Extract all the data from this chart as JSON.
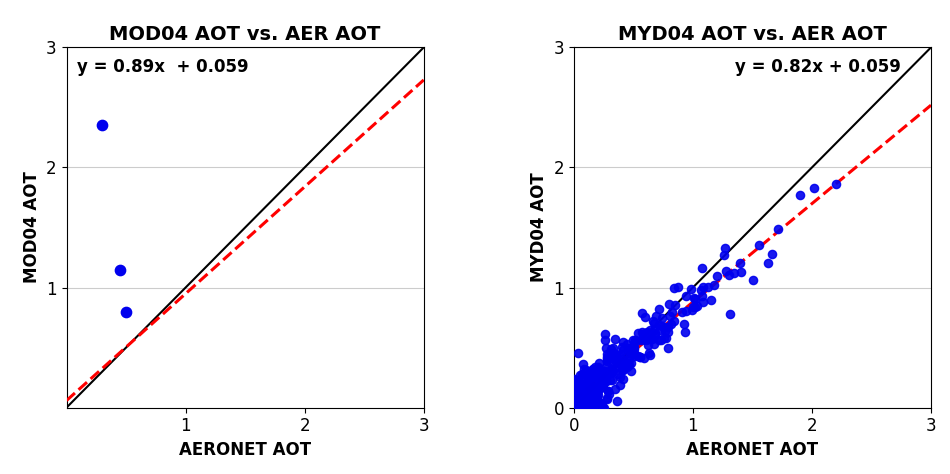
{
  "left_plot": {
    "title": "MOD04 AOT vs. AER AOT",
    "xlabel": "AERONET AOT",
    "ylabel": "MOD04 AOT",
    "equation": "y = 0.89x  + 0.059",
    "xlim": [
      0,
      3
    ],
    "ylim": [
      0,
      3
    ],
    "xticks": [
      1,
      2,
      3
    ],
    "yticks": [
      1,
      2,
      3
    ],
    "scatter_x": [
      0.3,
      0.45,
      0.5
    ],
    "scatter_y": [
      2.35,
      1.15,
      0.8
    ],
    "reg_slope": 0.89,
    "reg_intercept": 0.059,
    "scatter_color": "#0000ee",
    "scatter_size": 55,
    "line_color": "#000000",
    "reg_color": "#ff0000"
  },
  "right_plot": {
    "title": "MYD04 AOT vs. AER AOT",
    "xlabel": "AERONET AOT",
    "ylabel": "MYD04 AOT",
    "equation": "y = 0.82x + 0.059",
    "xlim": [
      0,
      3
    ],
    "ylim": [
      0,
      3
    ],
    "xticks": [
      0,
      1,
      2,
      3
    ],
    "yticks": [
      0,
      1,
      2,
      3
    ],
    "reg_slope": 0.82,
    "reg_intercept": 0.059,
    "scatter_color": "#0000ee",
    "scatter_size": 35,
    "line_color": "#000000",
    "reg_color": "#ff0000",
    "n_points": 280,
    "seed": 7
  },
  "fig_bg": "#ffffff",
  "font_size_title": 14,
  "font_size_label": 12,
  "font_size_eq": 12,
  "fig_width": 9.5,
  "fig_height": 4.74,
  "fig_dpi": 100
}
